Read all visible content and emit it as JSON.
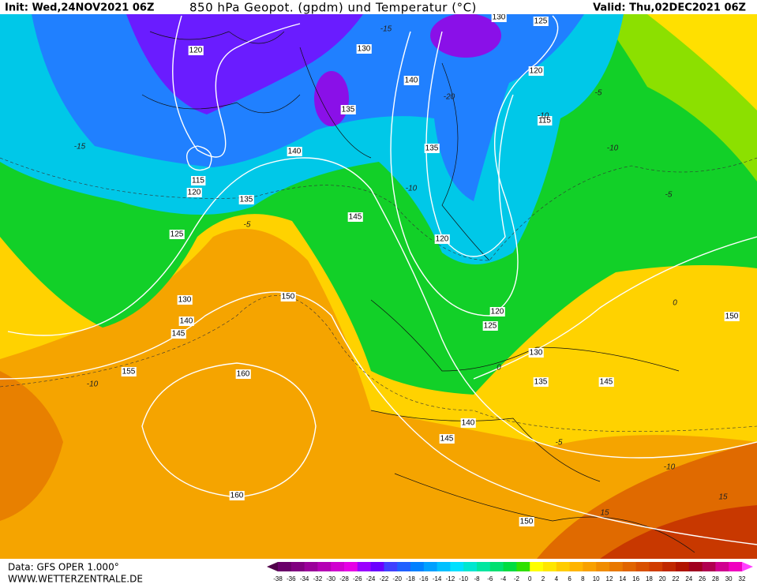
{
  "header": {
    "init": "Init: Wed,24NOV2021 06Z",
    "title": "850 hPa Geopot. (gpdm) und Temperatur (°C)",
    "valid": "Valid: Thu,02DEC2021 06Z"
  },
  "footer": {
    "data": "Data: GFS OPER 1.000°",
    "site": "WWW.WETTERZENTRALE.DE"
  },
  "geopotential_labels": [
    120,
    130,
    130,
    125,
    120,
    140,
    135,
    115,
    135,
    140,
    115,
    120,
    135,
    145,
    125,
    120,
    130,
    150,
    120,
    140,
    145,
    125,
    150,
    130,
    160,
    155,
    135,
    145,
    140,
    145,
    160,
    150
  ],
  "temperature_labels": [
    -15,
    -20,
    -15,
    -10,
    -5,
    -10,
    -10,
    15,
    15,
    -5,
    0,
    0,
    -5,
    -10,
    -5,
    -10
  ],
  "colorbar": {
    "ticks": [
      -38,
      -36,
      -34,
      -32,
      -30,
      -28,
      -26,
      -24,
      -22,
      -20,
      -18,
      -16,
      -14,
      -12,
      -10,
      -8,
      -6,
      -4,
      -2,
      0,
      2,
      4,
      6,
      8,
      10,
      12,
      14,
      16,
      18,
      20,
      22,
      24,
      26,
      28,
      30,
      32
    ],
    "colors": [
      "#50004a",
      "#6a006a",
      "#800080",
      "#9a009a",
      "#b400b4",
      "#d000d0",
      "#e600e6",
      "#9a00ff",
      "#6a00ff",
      "#4040ff",
      "#2060ff",
      "#0080ff",
      "#00a0ff",
      "#00c0ff",
      "#00e0ff",
      "#00e6d0",
      "#00e6a0",
      "#00e070",
      "#00dc40",
      "#30e000",
      "#ffff00",
      "#ffe600",
      "#ffcc00",
      "#ffb400",
      "#f8a000",
      "#f08c00",
      "#e87800",
      "#e06400",
      "#d85000",
      "#d03c00",
      "#c02800",
      "#b01400",
      "#a00020",
      "#b00050",
      "#d00090",
      "#f000c0",
      "#ff40ff"
    ]
  }
}
